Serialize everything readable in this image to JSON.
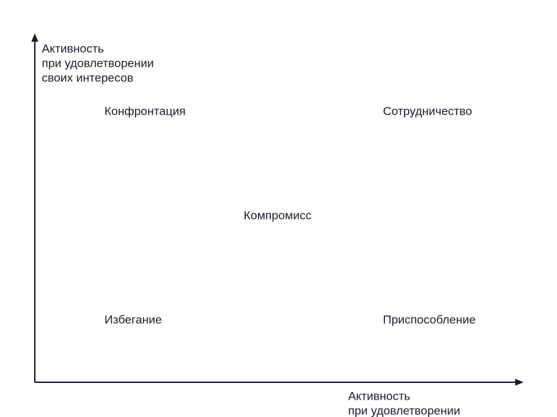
{
  "y_axis": {
    "label_lines": [
      "Активность",
      "при удовлетворении",
      "своих интересов"
    ]
  },
  "x_axis": {
    "label_lines": [
      "Активность",
      "при удовлетворении"
    ]
  },
  "nodes": [
    {
      "label": "Конфронтация"
    },
    {
      "label": "Сотрудничество"
    },
    {
      "label": "Компромисс"
    },
    {
      "label": "Избегание"
    },
    {
      "label": "Приспособление"
    }
  ]
}
